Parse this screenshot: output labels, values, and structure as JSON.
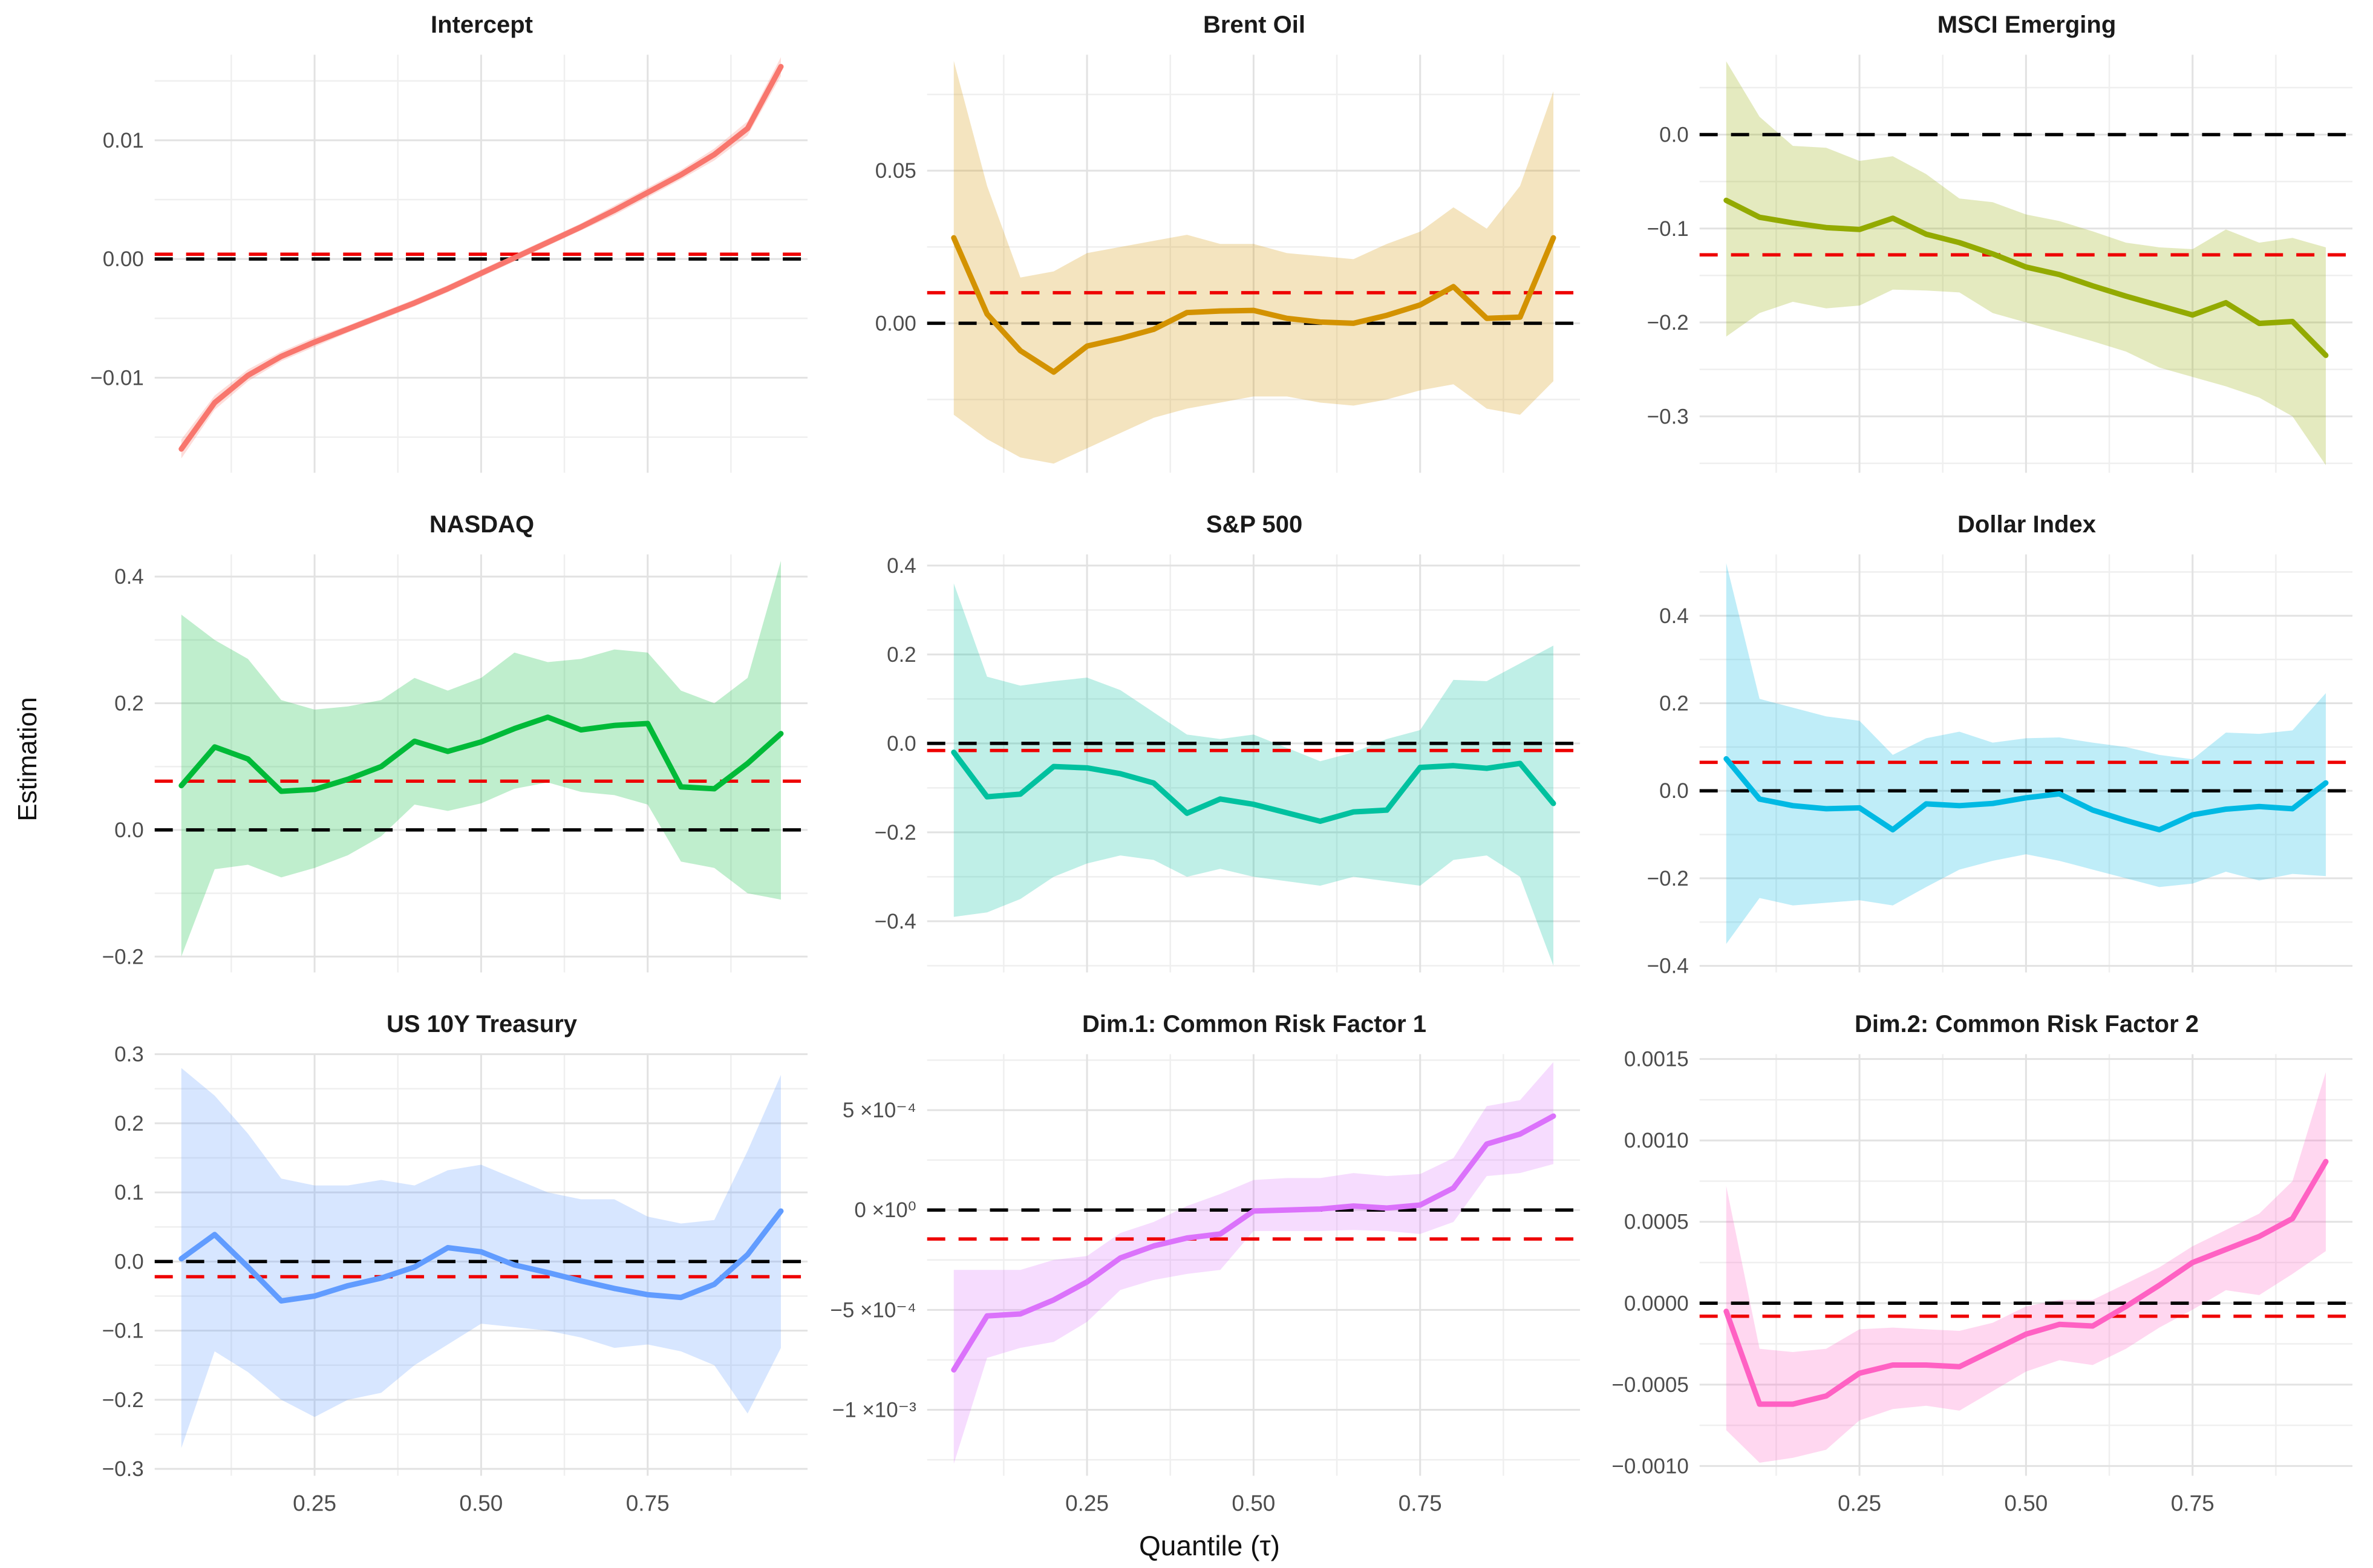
{
  "figure": {
    "y_axis_label": "Estimation",
    "x_axis_label": "Quantile (τ)",
    "background_color": "#FFFFFF",
    "grid_major_color": "#E2E2E2",
    "grid_minor_color": "#EFEFEF",
    "tick_label_color": "#4D4D4D",
    "title_color": "#1A1A1A",
    "zero_line_color": "#000000",
    "ols_line_color": "#EE0000",
    "ribbon_opacity": 0.25
  },
  "x_axis": {
    "values": [
      0.05,
      0.1,
      0.15,
      0.2,
      0.25,
      0.3,
      0.35,
      0.4,
      0.45,
      0.5,
      0.55,
      0.6,
      0.65,
      0.7,
      0.75,
      0.8,
      0.85,
      0.9,
      0.95
    ],
    "lim": [
      0.01,
      0.99
    ],
    "ticks": [
      {
        "v": 0.25,
        "label": "0.25"
      },
      {
        "v": 0.5,
        "label": "0.50"
      },
      {
        "v": 0.75,
        "label": "0.75"
      }
    ],
    "minor": [
      0.125,
      0.375,
      0.625,
      0.875
    ]
  },
  "chart_data": [
    {
      "type": "line",
      "title": "Intercept",
      "color": "#F8766D",
      "ylim": [
        -0.018,
        0.0172
      ],
      "yticks": [
        {
          "v": 0.01,
          "label": "0.01"
        },
        {
          "v": 0.0,
          "label": "0.00"
        },
        {
          "v": -0.01,
          "label": "−0.01"
        }
      ],
      "yminor": [
        0.015,
        0.005,
        -0.005,
        -0.015
      ],
      "hline_zero": 0.0,
      "hline_ols": 0.0004,
      "show_x_ticks": false,
      "y": [
        -0.016,
        -0.0121,
        -0.0098,
        -0.0082,
        -0.007,
        -0.0059,
        -0.0048,
        -0.0037,
        -0.0025,
        -0.0012,
        0.0001,
        0.0014,
        0.0027,
        0.0041,
        0.0056,
        0.0071,
        0.0088,
        0.011,
        0.0162
      ],
      "ci_lower": [
        -0.0168,
        -0.0127,
        -0.0103,
        -0.0086,
        -0.0074,
        -0.0062,
        -0.0051,
        -0.004,
        -0.0028,
        -0.0015,
        -0.0002,
        0.0011,
        0.0024,
        0.0037,
        0.0052,
        0.0067,
        0.0083,
        0.0104,
        0.0154
      ],
      "ci_upper": [
        -0.0152,
        -0.0115,
        -0.0093,
        -0.0078,
        -0.0066,
        -0.0056,
        -0.0045,
        -0.0034,
        -0.0022,
        -0.0009,
        0.0004,
        0.0017,
        0.003,
        0.0045,
        0.006,
        0.0075,
        0.0093,
        0.0116,
        0.017
      ]
    },
    {
      "type": "line",
      "title": "Brent Oil",
      "color": "#D39200",
      "ylim": [
        -0.049,
        0.088
      ],
      "yticks": [
        {
          "v": 0.05,
          "label": "0.05"
        },
        {
          "v": 0.0,
          "label": "0.00"
        }
      ],
      "yminor": [
        0.075,
        0.025,
        -0.025
      ],
      "hline_zero": 0.0,
      "hline_ols": 0.01,
      "show_x_ticks": false,
      "y": [
        0.028,
        0.003,
        -0.009,
        -0.016,
        -0.0075,
        -0.005,
        -0.002,
        0.0035,
        0.004,
        0.0042,
        0.0016,
        0.0004,
        0.0,
        0.0026,
        0.006,
        0.012,
        0.0016,
        0.002,
        0.028
      ],
      "ci_lower": [
        -0.03,
        -0.038,
        -0.044,
        -0.046,
        -0.041,
        -0.036,
        -0.031,
        -0.028,
        -0.026,
        -0.024,
        -0.024,
        -0.026,
        -0.027,
        -0.025,
        -0.022,
        -0.02,
        -0.028,
        -0.03,
        -0.019
      ],
      "ci_upper": [
        0.086,
        0.045,
        0.015,
        0.017,
        0.023,
        0.025,
        0.027,
        0.029,
        0.026,
        0.026,
        0.023,
        0.022,
        0.021,
        0.026,
        0.03,
        0.038,
        0.031,
        0.045,
        0.076
      ]
    },
    {
      "type": "line",
      "title": "MSCI Emerging",
      "color": "#93AA00",
      "ylim": [
        -0.36,
        0.085
      ],
      "yticks": [
        {
          "v": 0.0,
          "label": "0.0"
        },
        {
          "v": -0.1,
          "label": "−0.1"
        },
        {
          "v": -0.2,
          "label": "−0.2"
        },
        {
          "v": -0.3,
          "label": "−0.3"
        }
      ],
      "yminor": [
        0.05,
        -0.05,
        -0.15,
        -0.25,
        -0.35
      ],
      "hline_zero": 0.0,
      "hline_ols": -0.128,
      "show_x_ticks": false,
      "y": [
        -0.07,
        -0.088,
        -0.094,
        -0.099,
        -0.101,
        -0.089,
        -0.106,
        -0.115,
        -0.127,
        -0.141,
        -0.149,
        -0.161,
        -0.172,
        -0.182,
        -0.192,
        -0.179,
        -0.201,
        -0.199,
        -0.235
      ],
      "ci_lower": [
        -0.215,
        -0.19,
        -0.178,
        -0.185,
        -0.182,
        -0.165,
        -0.166,
        -0.168,
        -0.19,
        -0.2,
        -0.21,
        -0.22,
        -0.231,
        -0.248,
        -0.258,
        -0.268,
        -0.28,
        -0.3,
        -0.352
      ],
      "ci_upper": [
        0.078,
        0.019,
        -0.012,
        -0.014,
        -0.028,
        -0.023,
        -0.042,
        -0.068,
        -0.072,
        -0.085,
        -0.092,
        -0.103,
        -0.115,
        -0.12,
        -0.122,
        -0.101,
        -0.115,
        -0.11,
        -0.12
      ]
    },
    {
      "type": "line",
      "title": "NASDAQ",
      "color": "#00BA38",
      "ylim": [
        -0.225,
        0.435
      ],
      "yticks": [
        {
          "v": 0.4,
          "label": "0.4"
        },
        {
          "v": 0.2,
          "label": "0.2"
        },
        {
          "v": 0.0,
          "label": "0.0"
        },
        {
          "v": -0.2,
          "label": "−0.2"
        }
      ],
      "yminor": [
        0.3,
        0.1,
        -0.1
      ],
      "hline_zero": 0.0,
      "hline_ols": 0.077,
      "show_x_ticks": false,
      "y": [
        0.07,
        0.131,
        0.112,
        0.061,
        0.064,
        0.08,
        0.1,
        0.14,
        0.124,
        0.139,
        0.16,
        0.178,
        0.158,
        0.165,
        0.168,
        0.068,
        0.065,
        0.105,
        0.152
      ],
      "ci_lower": [
        -0.2,
        -0.062,
        -0.055,
        -0.075,
        -0.06,
        -0.04,
        -0.01,
        0.04,
        0.03,
        0.042,
        0.065,
        0.075,
        0.06,
        0.055,
        0.04,
        -0.05,
        -0.06,
        -0.1,
        -0.11
      ],
      "ci_upper": [
        0.34,
        0.3,
        0.27,
        0.205,
        0.19,
        0.195,
        0.205,
        0.24,
        0.22,
        0.24,
        0.28,
        0.265,
        0.27,
        0.285,
        0.28,
        0.22,
        0.2,
        0.24,
        0.425
      ]
    },
    {
      "type": "line",
      "title": "S&P 500",
      "color": "#00C19F",
      "ylim": [
        -0.515,
        0.425
      ],
      "yticks": [
        {
          "v": 0.4,
          "label": "0.4"
        },
        {
          "v": 0.2,
          "label": "0.2"
        },
        {
          "v": 0.0,
          "label": "0.0"
        },
        {
          "v": -0.2,
          "label": "−0.2"
        },
        {
          "v": -0.4,
          "label": "−0.4"
        }
      ],
      "yminor": [
        0.3,
        0.1,
        -0.1,
        -0.3,
        -0.5
      ],
      "hline_zero": 0.0,
      "hline_ols": -0.016,
      "show_x_ticks": false,
      "y": [
        -0.02,
        -0.12,
        -0.114,
        -0.052,
        -0.055,
        -0.068,
        -0.089,
        -0.157,
        -0.125,
        -0.137,
        -0.156,
        -0.175,
        -0.154,
        -0.15,
        -0.054,
        -0.05,
        -0.056,
        -0.045,
        -0.135
      ],
      "ci_lower": [
        -0.39,
        -0.38,
        -0.35,
        -0.3,
        -0.27,
        -0.252,
        -0.262,
        -0.3,
        -0.282,
        -0.3,
        -0.31,
        -0.32,
        -0.3,
        -0.31,
        -0.32,
        -0.262,
        -0.252,
        -0.3,
        -0.5
      ],
      "ci_upper": [
        0.36,
        0.15,
        0.13,
        0.14,
        0.148,
        0.12,
        0.07,
        0.02,
        0.01,
        0.02,
        -0.01,
        -0.04,
        -0.02,
        0.01,
        0.03,
        0.143,
        0.14,
        0.18,
        0.22
      ]
    },
    {
      "type": "line",
      "title": "Dollar Index",
      "color": "#00B9E3",
      "ylim": [
        -0.415,
        0.54
      ],
      "yticks": [
        {
          "v": 0.4,
          "label": "0.4"
        },
        {
          "v": 0.2,
          "label": "0.2"
        },
        {
          "v": 0.0,
          "label": "0.0"
        },
        {
          "v": -0.2,
          "label": "−0.2"
        },
        {
          "v": -0.4,
          "label": "−0.4"
        }
      ],
      "yminor": [
        0.5,
        0.3,
        0.1,
        -0.1,
        -0.3
      ],
      "hline_zero": 0.0,
      "hline_ols": 0.065,
      "show_x_ticks": false,
      "y": [
        0.073,
        -0.019,
        -0.034,
        -0.041,
        -0.039,
        -0.089,
        -0.03,
        -0.034,
        -0.029,
        -0.016,
        -0.007,
        -0.044,
        -0.068,
        -0.089,
        -0.055,
        -0.042,
        -0.036,
        -0.041,
        0.018
      ],
      "ci_lower": [
        -0.35,
        -0.245,
        -0.262,
        -0.256,
        -0.25,
        -0.262,
        -0.22,
        -0.18,
        -0.16,
        -0.145,
        -0.16,
        -0.18,
        -0.2,
        -0.22,
        -0.212,
        -0.185,
        -0.205,
        -0.19,
        -0.195
      ],
      "ci_upper": [
        0.52,
        0.21,
        0.19,
        0.17,
        0.16,
        0.082,
        0.12,
        0.135,
        0.11,
        0.12,
        0.122,
        0.11,
        0.1,
        0.082,
        0.072,
        0.133,
        0.13,
        0.138,
        0.223
      ]
    },
    {
      "type": "line",
      "title": "US 10Y Treasury",
      "color": "#619CFF",
      "ylim": [
        -0.31,
        0.3
      ],
      "yticks": [
        {
          "v": 0.3,
          "label": "0.3"
        },
        {
          "v": 0.2,
          "label": "0.2"
        },
        {
          "v": 0.1,
          "label": "0.1"
        },
        {
          "v": 0.0,
          "label": "0.0"
        },
        {
          "v": -0.1,
          "label": "−0.1"
        },
        {
          "v": -0.2,
          "label": "−0.2"
        },
        {
          "v": -0.3,
          "label": "−0.3"
        }
      ],
      "yminor": [
        0.25,
        0.15,
        0.05,
        -0.05,
        -0.15,
        -0.25
      ],
      "hline_zero": 0.0,
      "hline_ols": -0.022,
      "show_x_ticks": true,
      "y": [
        0.004,
        0.039,
        -0.008,
        -0.057,
        -0.05,
        -0.035,
        -0.024,
        -0.008,
        0.02,
        0.014,
        -0.005,
        -0.016,
        -0.028,
        -0.039,
        -0.048,
        -0.052,
        -0.033,
        0.01,
        0.073
      ],
      "ci_lower": [
        -0.27,
        -0.13,
        -0.16,
        -0.2,
        -0.225,
        -0.2,
        -0.19,
        -0.15,
        -0.12,
        -0.09,
        -0.095,
        -0.1,
        -0.11,
        -0.125,
        -0.12,
        -0.13,
        -0.15,
        -0.22,
        -0.125
      ],
      "ci_upper": [
        0.28,
        0.24,
        0.185,
        0.12,
        0.11,
        0.11,
        0.118,
        0.11,
        0.132,
        0.14,
        0.12,
        0.1,
        0.09,
        0.09,
        0.065,
        0.055,
        0.06,
        0.16,
        0.27
      ]
    },
    {
      "type": "line",
      "title": "Dim.1: Common Risk Factor 1",
      "color": "#DB72FB",
      "ylim": [
        -0.00133,
        0.00078
      ],
      "yticks": [
        {
          "v": 0.0005,
          "label": "5 ×10⁻⁴"
        },
        {
          "v": 0.0,
          "label": "0 ×10⁰"
        },
        {
          "v": -0.0005,
          "label": "−5 ×10⁻⁴"
        },
        {
          "v": -0.001,
          "label": "−1 ×10⁻³"
        }
      ],
      "yminor": [
        0.00075,
        0.00025,
        -0.00025,
        -0.00075,
        -0.00125
      ],
      "hline_zero": 0.0,
      "hline_ols": -0.000145,
      "show_x_ticks": true,
      "y": [
        -0.0008,
        -0.00053,
        -0.00052,
        -0.00045,
        -0.00036,
        -0.00024,
        -0.00018,
        -0.00014,
        -0.00012,
        -5e-06,
        0.0,
        5e-06,
        2e-05,
        1e-05,
        2.5e-05,
        0.00011,
        0.00033,
        0.00038,
        0.00047
      ],
      "ci_lower": [
        -0.00127,
        -0.00074,
        -0.00069,
        -0.00066,
        -0.00056,
        -0.0004,
        -0.00035,
        -0.00032,
        -0.0003,
        -0.000105,
        -0.000105,
        -0.000105,
        -0.0001,
        -0.000105,
        -0.00012,
        -6e-05,
        0.00017,
        0.000185,
        0.00023
      ],
      "ci_upper": [
        -0.0003,
        -0.0003,
        -0.0003,
        -0.00025,
        -0.00023,
        -0.000115,
        -6e-05,
        2e-05,
        8e-05,
        0.00015,
        0.00016,
        0.00016,
        0.000185,
        0.00017,
        0.00018,
        0.00026,
        0.00052,
        0.00055,
        0.00074
      ]
    },
    {
      "type": "line",
      "title": "Dim.2: Common Risk Factor 2",
      "color": "#FF61C3",
      "ylim": [
        -0.00106,
        0.00153
      ],
      "yticks": [
        {
          "v": 0.0015,
          "label": "0.0015"
        },
        {
          "v": 0.001,
          "label": "0.0010"
        },
        {
          "v": 0.0005,
          "label": "0.0005"
        },
        {
          "v": 0.0,
          "label": "0.0000"
        },
        {
          "v": -0.0005,
          "label": "−0.0005"
        },
        {
          "v": -0.001,
          "label": "−0.0010"
        }
      ],
      "yminor": [
        0.00125,
        0.00075,
        0.00025,
        -0.00025,
        -0.00075
      ],
      "hline_zero": 0.0,
      "hline_ols": -8e-05,
      "show_x_ticks": true,
      "y": [
        -5e-05,
        -0.00062,
        -0.00062,
        -0.00057,
        -0.00043,
        -0.00038,
        -0.00038,
        -0.00039,
        -0.00029,
        -0.00019,
        -0.00013,
        -0.00014,
        -2e-05,
        0.00011,
        0.00025,
        0.00033,
        0.00041,
        0.00052,
        0.00087
      ],
      "ci_lower": [
        -0.00078,
        -0.00098,
        -0.00095,
        -0.0009,
        -0.00072,
        -0.00065,
        -0.00063,
        -0.00066,
        -0.00054,
        -0.00042,
        -0.00035,
        -0.00038,
        -0.00028,
        -0.00015,
        -4e-05,
        8e-05,
        5e-05,
        0.00018,
        0.00032
      ],
      "ci_upper": [
        0.00072,
        -0.00028,
        -0.0003,
        -0.00028,
        -0.00016,
        -0.00015,
        -0.00016,
        -0.00017,
        -0.00012,
        -2e-05,
        2e-05,
        2e-05,
        0.00012,
        0.00022,
        0.00035,
        0.00045,
        0.00055,
        0.00075,
        0.00142
      ]
    }
  ]
}
